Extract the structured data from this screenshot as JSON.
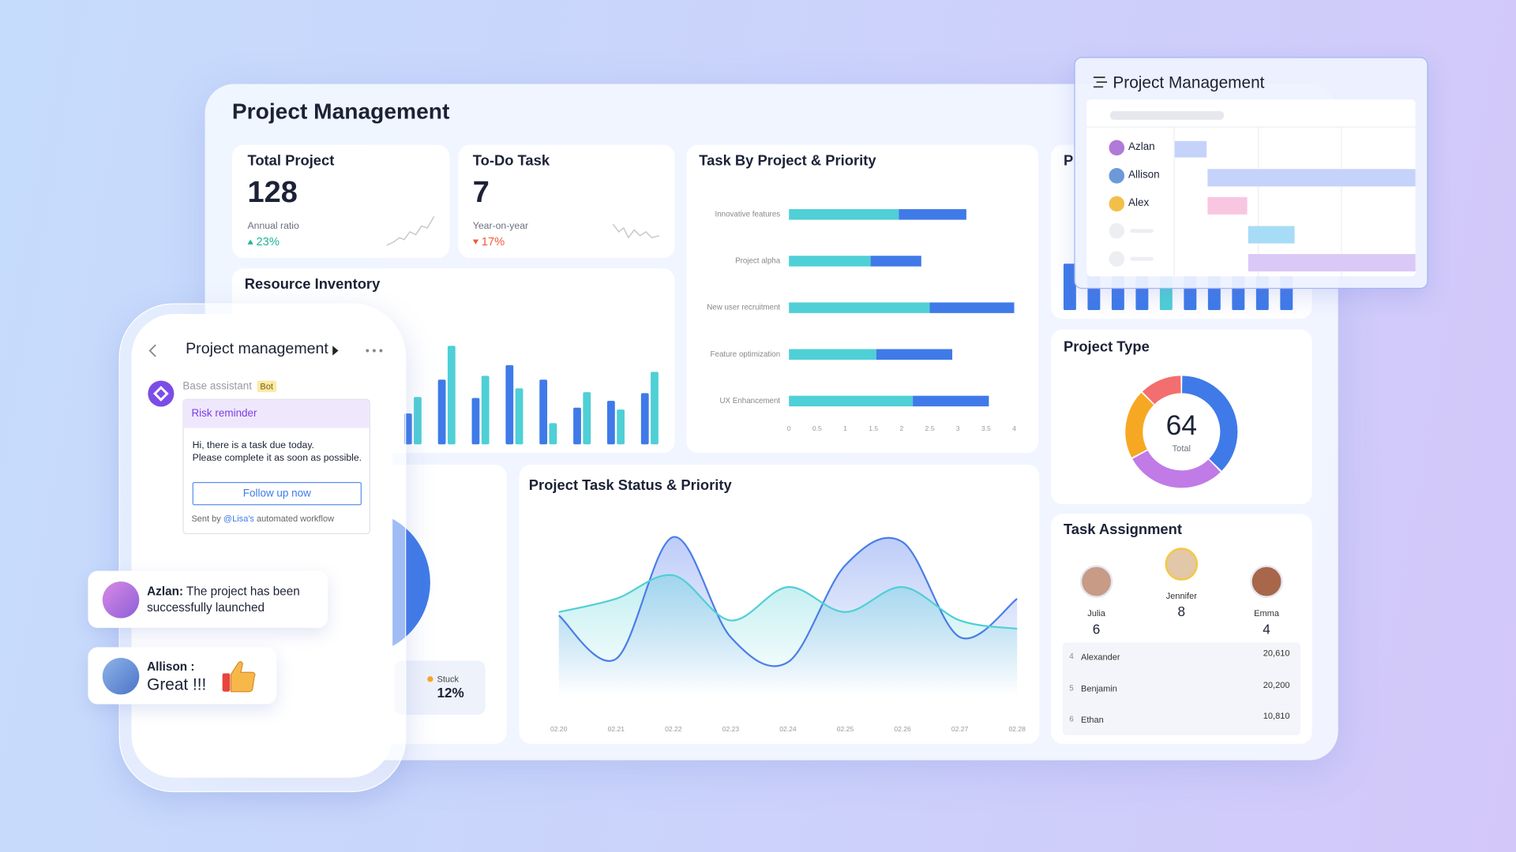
{
  "header": {
    "title": "Project Management"
  },
  "kpis": [
    {
      "title": "Total Project",
      "value": 128,
      "label": "Annual ratio",
      "change": "23%",
      "direction": "up"
    },
    {
      "title": "To-Do Task",
      "value": 7,
      "label": "Year-on-year",
      "change": "17%",
      "direction": "down"
    }
  ],
  "chart_data": [
    {
      "type": "bar",
      "orientation": "horizontal",
      "stacked": true,
      "title": "Task By Project & Priority",
      "categories": [
        "Innovative features",
        "Project alpha",
        "New user recruitment",
        "Feature optimization",
        "UX Enhancement"
      ],
      "series": [
        {
          "color": "#4fcfd6",
          "values": [
            1.95,
            1.45,
            2.5,
            1.55,
            2.2
          ]
        },
        {
          "color": "#3f7ae8",
          "values": [
            1.2,
            0.9,
            1.5,
            1.35,
            1.35
          ]
        }
      ],
      "xlim": [
        0,
        4
      ],
      "xticks": [
        0,
        0.5,
        1,
        1.5,
        2,
        2.5,
        3,
        3.5,
        4
      ]
    },
    {
      "type": "bar",
      "title": "Resource Inventory",
      "series": [
        {
          "color": "#3f7ae8",
          "values": [
            32,
            67,
            48,
            82,
            67,
            38,
            45,
            53
          ]
        },
        {
          "color": "#4fcfd6",
          "values": [
            49,
            102,
            71,
            58,
            22,
            54,
            36,
            75
          ]
        }
      ],
      "ylim": [
        0,
        110
      ]
    },
    {
      "type": "area",
      "title": "Project Task Status & Priority",
      "categories": [
        "02.20",
        "02.21",
        "02.22",
        "02.23",
        "02.24",
        "02.25",
        "02.26",
        "02.27",
        "02.28"
      ],
      "series": [
        {
          "color": "#4a7ee8",
          "values": [
            48,
            22,
            95,
            35,
            20,
            78,
            92,
            35,
            58
          ]
        },
        {
          "color": "#4fcfd6",
          "values": [
            50,
            58,
            72,
            45,
            65,
            50,
            65,
            45,
            40
          ]
        }
      ],
      "ylim": [
        0,
        110
      ]
    },
    {
      "type": "donut",
      "title": "Project Type",
      "total": 64,
      "total_label": "Total",
      "values": [
        24,
        19,
        13,
        8
      ],
      "colors": [
        "#3f7ae8",
        "#c07be6",
        "#f7a823",
        "#f36e6e"
      ]
    },
    {
      "type": "bar",
      "title": "P",
      "values": [
        40,
        42,
        38,
        45,
        36,
        44,
        41,
        39,
        43,
        37
      ],
      "colors": [
        "#3f7ae8",
        "#3f7ae8",
        "#3f7ae8",
        "#3f7ae8",
        "#4fcfd6",
        "#3f7ae8",
        "#3f7ae8",
        "#3f7ae8",
        "#3f7ae8",
        "#3f7ae8"
      ],
      "ylim": [
        0,
        50
      ]
    }
  ],
  "task_assignment": {
    "title": "Task Assignment",
    "people": [
      {
        "name": "Julia",
        "count": 6
      },
      {
        "name": "Jennifer",
        "count": 8
      },
      {
        "name": "Emma",
        "count": 4
      }
    ],
    "rows": [
      {
        "rank": 4,
        "name": "Alexander",
        "value": "20,610"
      },
      {
        "rank": 5,
        "name": "Benjamin",
        "value": "20,200"
      },
      {
        "rank": 6,
        "name": "Ethan",
        "value": "10,810"
      }
    ]
  },
  "gantt": {
    "title": "Project Management",
    "people": [
      "Azlan",
      "Allison",
      "Alex"
    ]
  },
  "phone": {
    "title": "Project management",
    "sender": "Base assistant",
    "badge": "Bot",
    "card_title": "Risk reminder",
    "message": [
      "Hi, there is a task due today.",
      "Please complete it as soon as possible."
    ],
    "button": "Follow up now",
    "footer": [
      "Sent by",
      "@Lisa's",
      "automated workflow"
    ]
  },
  "chats": [
    {
      "name": "Azlan:",
      "text": "The project has been successfully launched"
    },
    {
      "name": "Allison :",
      "text": "Great !!!"
    }
  ],
  "status_card": {
    "label": "Stuck",
    "value": "12%"
  }
}
